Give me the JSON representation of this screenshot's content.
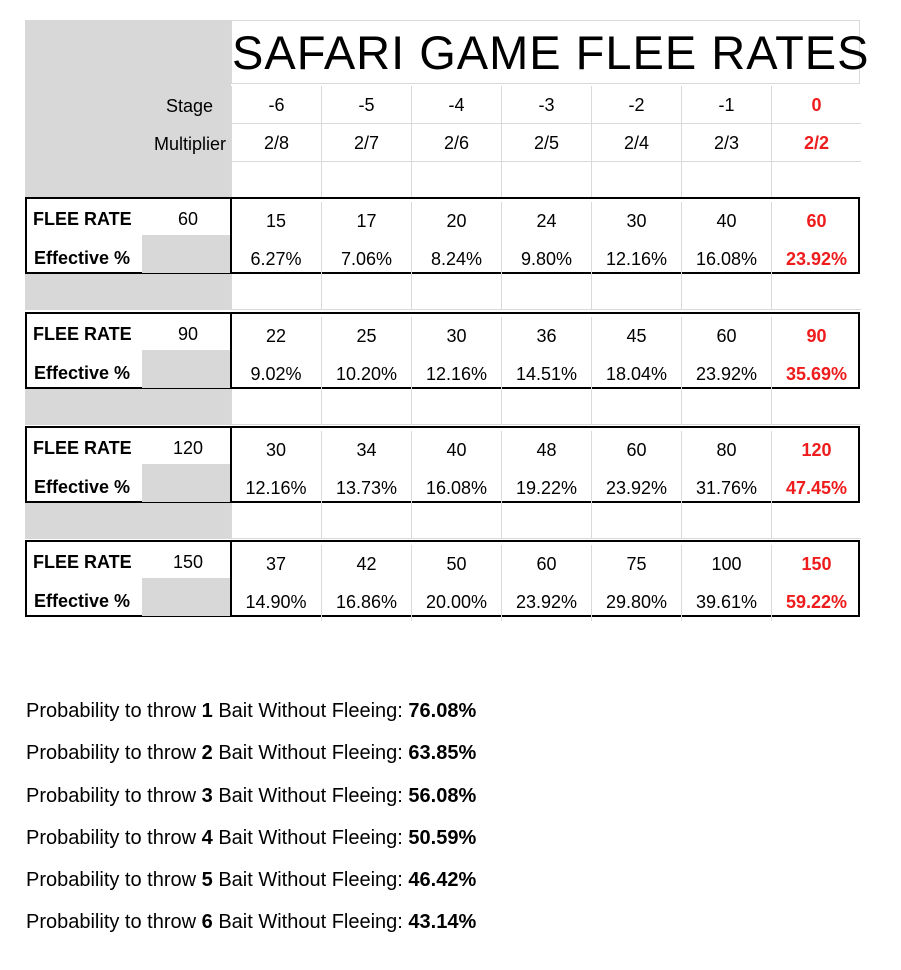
{
  "title": "SAFARI GAME FLEE RATES",
  "header": {
    "stage_label": "Stage",
    "multiplier_label": "Multiplier",
    "stages": [
      "-6",
      "-5",
      "-4",
      "-3",
      "-2",
      "-1",
      "0"
    ],
    "multipliers": [
      "2/8",
      "2/7",
      "2/6",
      "2/5",
      "2/4",
      "2/3",
      "2/2"
    ]
  },
  "blocks": [
    {
      "flee_label": "FLEE RATE",
      "base": "60",
      "effective_label": "Effective %",
      "rates": [
        "15",
        "17",
        "20",
        "24",
        "30",
        "40",
        "60"
      ],
      "effective": [
        "6.27%",
        "7.06%",
        "8.24%",
        "9.80%",
        "12.16%",
        "16.08%",
        "23.92%"
      ]
    },
    {
      "flee_label": "FLEE RATE",
      "base": "90",
      "effective_label": "Effective %",
      "rates": [
        "22",
        "25",
        "30",
        "36",
        "45",
        "60",
        "90"
      ],
      "effective": [
        "9.02%",
        "10.20%",
        "12.16%",
        "14.51%",
        "18.04%",
        "23.92%",
        "35.69%"
      ]
    },
    {
      "flee_label": "FLEE RATE",
      "base": "120",
      "effective_label": "Effective %",
      "rates": [
        "30",
        "34",
        "40",
        "48",
        "60",
        "80",
        "120"
      ],
      "effective": [
        "12.16%",
        "13.73%",
        "16.08%",
        "19.22%",
        "23.92%",
        "31.76%",
        "47.45%"
      ]
    },
    {
      "flee_label": "FLEE RATE",
      "base": "150",
      "effective_label": "Effective %",
      "rates": [
        "37",
        "42",
        "50",
        "60",
        "75",
        "100",
        "150"
      ],
      "effective": [
        "14.90%",
        "16.86%",
        "20.00%",
        "23.92%",
        "29.80%",
        "39.61%",
        "59.22%"
      ]
    }
  ],
  "probabilities": [
    {
      "prefix": "Probability to throw ",
      "count": "1",
      "middle": " Bait Without Fleeing: ",
      "value": "76.08%"
    },
    {
      "prefix": "Probability to throw ",
      "count": "2",
      "middle": " Bait Without Fleeing: ",
      "value": "63.85%"
    },
    {
      "prefix": "Probability to throw ",
      "count": "3",
      "middle": " Bait Without Fleeing: ",
      "value": "56.08%"
    },
    {
      "prefix": "Probability to throw ",
      "count": "4",
      "middle": " Bait Without Fleeing: ",
      "value": "50.59%"
    },
    {
      "prefix": "Probability to throw ",
      "count": "5",
      "middle": " Bait Without Fleeing: ",
      "value": "46.42%"
    },
    {
      "prefix": "Probability to throw ",
      "count": "6",
      "middle": " Bait Without Fleeing: ",
      "value": "43.14%"
    }
  ]
}
